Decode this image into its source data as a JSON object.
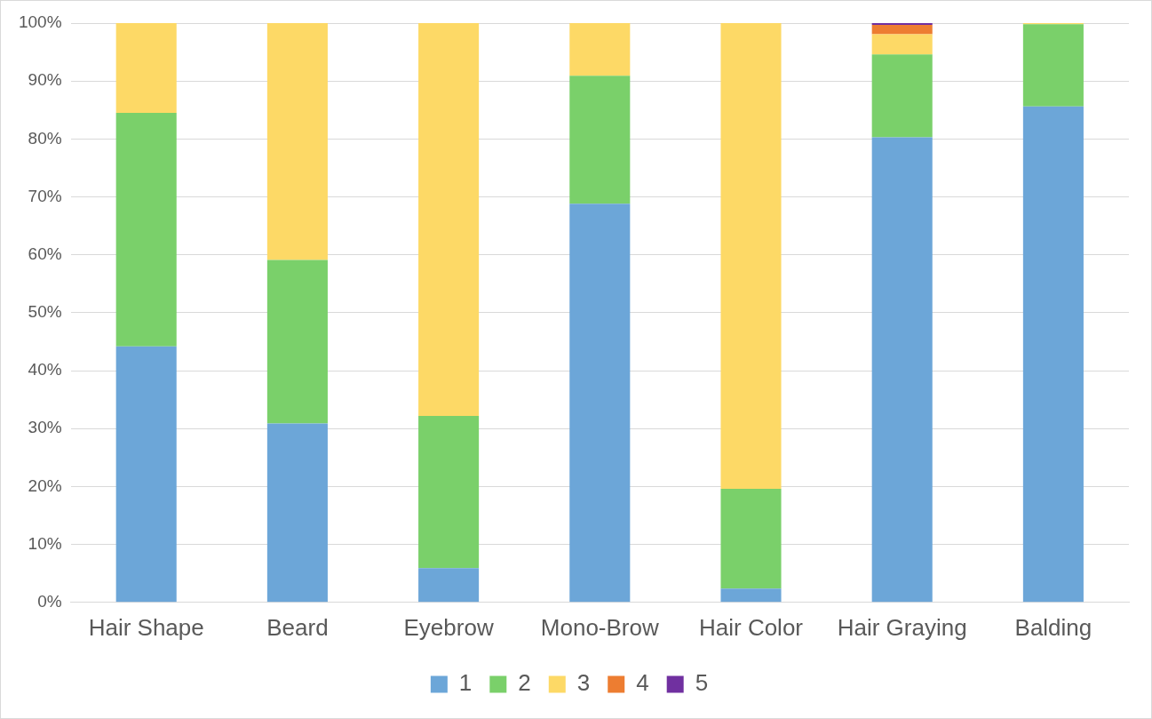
{
  "chart_data": {
    "type": "bar",
    "stacked": true,
    "categories": [
      "Hair Shape",
      "Beard",
      "Eyebrow",
      "Mono-Brow",
      "Hair Color",
      "Hair Graying",
      "Balding"
    ],
    "series": [
      {
        "name": "1",
        "color": "#6ca6d8",
        "values": [
          44.2,
          30.9,
          5.9,
          68.8,
          2.4,
          80.3,
          85.6
        ]
      },
      {
        "name": "2",
        "color": "#7ad06a",
        "values": [
          40.3,
          28.2,
          26.3,
          22.1,
          17.2,
          14.3,
          14.2
        ]
      },
      {
        "name": "3",
        "color": "#fdd966",
        "values": [
          15.5,
          40.9,
          67.8,
          9.1,
          80.4,
          3.5,
          0.2
        ]
      },
      {
        "name": "4",
        "color": "#ed7d31",
        "values": [
          0,
          0,
          0,
          0,
          0,
          1.6,
          0
        ]
      },
      {
        "name": "5",
        "color": "#7030a0",
        "values": [
          0,
          0,
          0,
          0,
          0,
          0.3,
          0
        ]
      }
    ],
    "ylim": [
      0,
      100
    ],
    "yticks": [
      {
        "value": 0,
        "label": "0%"
      },
      {
        "value": 10,
        "label": "10%"
      },
      {
        "value": 20,
        "label": "20%"
      },
      {
        "value": 30,
        "label": "30%"
      },
      {
        "value": 40,
        "label": "40%"
      },
      {
        "value": 50,
        "label": "50%"
      },
      {
        "value": 60,
        "label": "60%"
      },
      {
        "value": 70,
        "label": "70%"
      },
      {
        "value": 80,
        "label": "80%"
      },
      {
        "value": 90,
        "label": "90%"
      },
      {
        "value": 100,
        "label": "100%"
      }
    ],
    "grid": "y",
    "legend": "bottom"
  }
}
